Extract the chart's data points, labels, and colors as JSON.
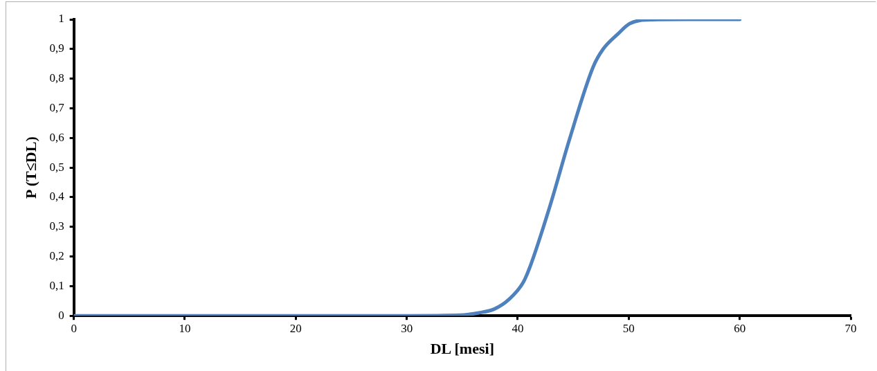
{
  "chart_data": {
    "type": "line",
    "xlabel": "DL [mesi]",
    "ylabel": "P (T≤DL)",
    "xlim": [
      0,
      70
    ],
    "xticks": [
      0,
      10,
      20,
      30,
      40,
      50,
      60,
      70
    ],
    "ylim": [
      0,
      1
    ],
    "yticks": [
      0,
      {
        "value": 0.1,
        "label": "0,1"
      },
      {
        "value": 0.2,
        "label": "0,2"
      },
      {
        "value": 0.3,
        "label": "0,3"
      },
      {
        "value": 0.4,
        "label": "0,4"
      },
      {
        "value": 0.5,
        "label": "0,5"
      },
      {
        "value": 0.6,
        "label": "0,6"
      },
      {
        "value": 0.7,
        "label": "0,7"
      },
      {
        "value": 0.8,
        "label": "0,8"
      },
      {
        "value": 0.9,
        "label": "0,9"
      },
      1
    ],
    "grid": false,
    "legend": false,
    "marker": "none",
    "line_style": "solid",
    "series": [
      {
        "color": "#4f81bd",
        "x": [
          0,
          10,
          20,
          30,
          34.8,
          36.5,
          37.9,
          39.2,
          40.5,
          41.2,
          42.9,
          44.7,
          46.8,
          47.7,
          49,
          50.1,
          52.1,
          55,
          60
        ],
        "values": [
          0,
          0,
          0,
          0,
          0.002,
          0.01,
          0.023,
          0.055,
          0.113,
          0.175,
          0.37,
          0.6,
          0.84,
          0.9,
          0.95,
          0.986,
          0.999,
          1,
          1
        ]
      }
    ]
  }
}
